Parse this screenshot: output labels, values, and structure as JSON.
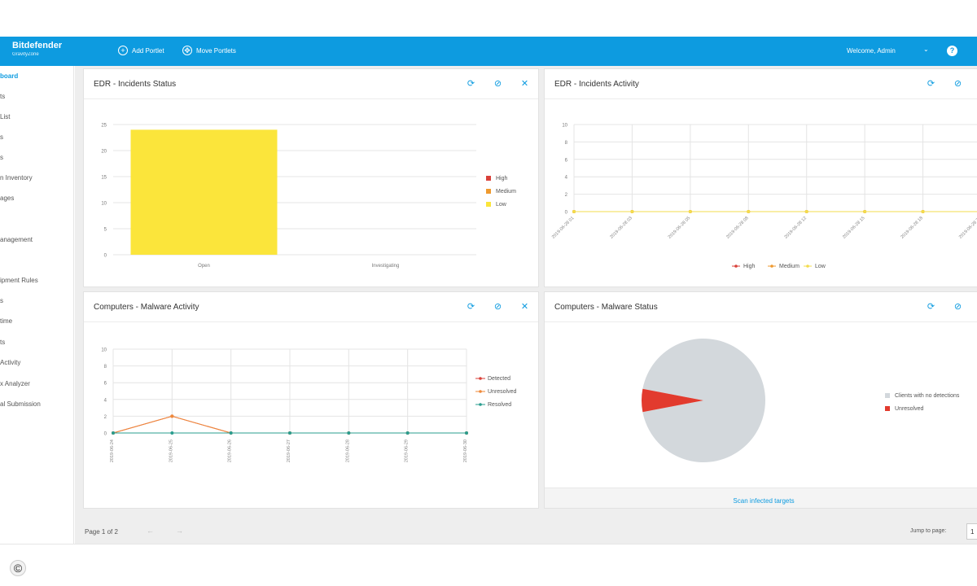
{
  "header": {
    "brand": "Bitdefender",
    "brand_sub": "GravityZone",
    "add_portlet": "Add Portlet",
    "move_portlets": "Move Portlets",
    "welcome": "Welcome, Admin",
    "help": "?",
    "colors": {
      "bar": "#0d9be0"
    }
  },
  "sidebar": {
    "items": [
      {
        "label": "board",
        "active": true
      },
      {
        "label": "ts"
      },
      {
        "label": "List"
      },
      {
        "label": "s"
      },
      {
        "label": "s"
      },
      {
        "label": "n Inventory"
      },
      {
        "label": "ages"
      },
      {
        "label": ""
      },
      {
        "label": "anagement"
      },
      {
        "label": ""
      },
      {
        "label": "ipment Rules"
      },
      {
        "label": "s"
      },
      {
        "label": "time"
      },
      {
        "label": "ts"
      },
      {
        "label": "Activity"
      },
      {
        "label": "x Analyzer"
      },
      {
        "label": "al Submission"
      }
    ]
  },
  "portlets": {
    "incidents_status": {
      "title": "EDR - Incidents Status"
    },
    "incidents_activity": {
      "title": "EDR - Incidents Activity"
    },
    "malware_activity": {
      "title": "Computers - Malware Activity"
    },
    "malware_status": {
      "title": "Computers - Malware Status",
      "scan_link": "Scan infected targets"
    }
  },
  "pager": {
    "text": "Page 1 of 2",
    "prev": "←",
    "next": "→",
    "jump_label": "Jump to page:",
    "jump_value": "1"
  },
  "copyright": "©",
  "chart_data": [
    {
      "type": "bar",
      "categories": [
        "Open",
        "Investigating"
      ],
      "series": [
        {
          "name": "High",
          "values": [
            0,
            0
          ],
          "color": "#d9413a"
        },
        {
          "name": "Medium",
          "values": [
            0,
            0
          ],
          "color": "#ef9a2f"
        },
        {
          "name": "Low",
          "values": [
            24,
            0
          ],
          "color": "#fbe53b"
        }
      ],
      "ylim": [
        0,
        25
      ],
      "yticks": [
        0,
        5,
        10,
        15,
        20,
        25
      ],
      "legend": "right",
      "grid": true
    },
    {
      "type": "line",
      "x": [
        "2019-06-28 01",
        "2019-06-28 03",
        "2019-06-28 05",
        "2019-06-28 08",
        "2019-06-28 12",
        "2019-06-28 15",
        "2019-06-28 18",
        "2019-06-28 20"
      ],
      "series": [
        {
          "name": "High",
          "values": [
            0,
            0,
            0,
            0,
            0,
            0,
            0,
            0
          ],
          "color": "#d9413a"
        },
        {
          "name": "Medium",
          "values": [
            0,
            0,
            0,
            0,
            0,
            0,
            0,
            0
          ],
          "color": "#ef9a2f"
        },
        {
          "name": "Low",
          "values": [
            0,
            0,
            0,
            0,
            0,
            0,
            0,
            0
          ],
          "color": "#f3dc4c"
        }
      ],
      "ylim": [
        0,
        10
      ],
      "yticks": [
        0,
        2,
        4,
        6,
        8,
        10
      ],
      "legend": "bottom",
      "grid": true
    },
    {
      "type": "line",
      "x": [
        "2019-06-24",
        "2019-06-25",
        "2019-06-26",
        "2019-06-27",
        "2019-06-28",
        "2019-06-29",
        "2019-06-30"
      ],
      "series": [
        {
          "name": "Detected",
          "values": [
            0,
            2,
            0,
            0,
            0,
            0,
            0
          ],
          "color": "#d9413a"
        },
        {
          "name": "Unresolved",
          "values": [
            0,
            2,
            0,
            0,
            0,
            0,
            0
          ],
          "color": "#ef8a3a"
        },
        {
          "name": "Resolved",
          "values": [
            0,
            0,
            0,
            0,
            0,
            0,
            0
          ],
          "color": "#2a9d8f"
        }
      ],
      "ylim": [
        0,
        10
      ],
      "yticks": [
        0,
        2,
        4,
        6,
        8,
        10
      ],
      "legend": "right",
      "grid": true
    },
    {
      "type": "pie",
      "slices": [
        {
          "name": "Clients with no detections",
          "value": 94,
          "color": "#d3d8dc"
        },
        {
          "name": "Unresolved",
          "value": 6,
          "color": "#e23b2e"
        }
      ],
      "legend": "right"
    }
  ]
}
